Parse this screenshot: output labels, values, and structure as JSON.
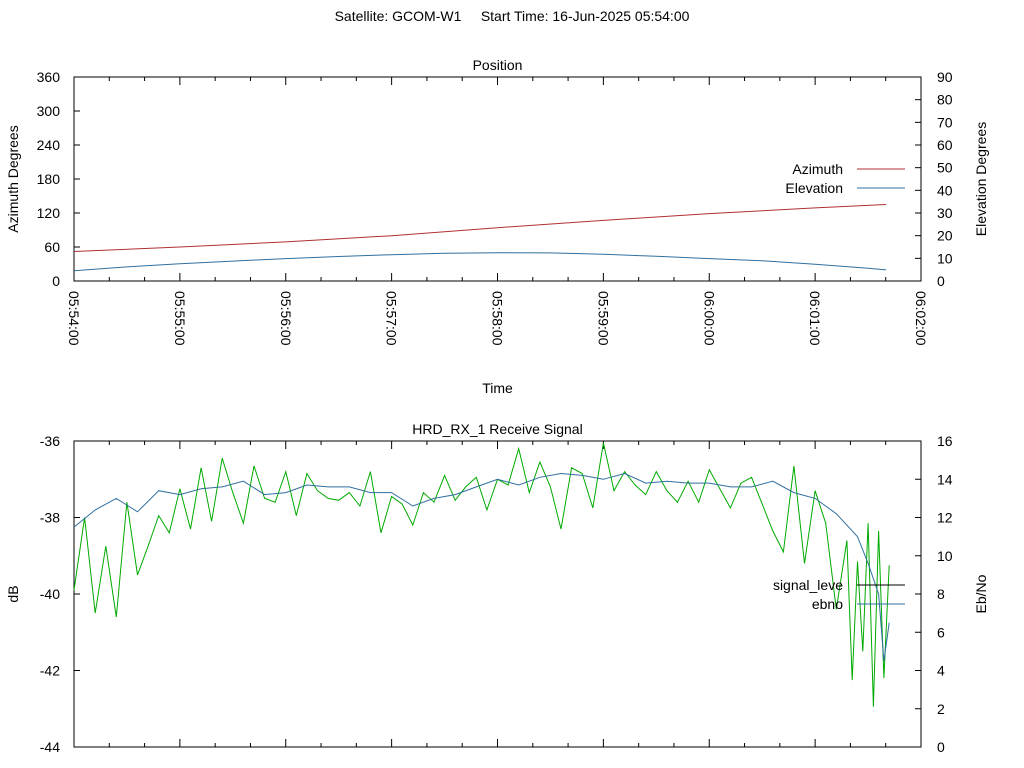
{
  "header": {
    "title": "Satellite: GCOM-W1     Start Time: 16-Jun-2025 05:54:00"
  },
  "chart_data": [
    {
      "type": "line",
      "title": "Position",
      "xlabel": "Time",
      "ylabel": "Azimuth Degrees",
      "y2label": "Elevation Degrees",
      "x_ticks": [
        "05:54:00",
        "05:55:00",
        "05:56:00",
        "05:57:00",
        "05:58:00",
        "05:59:00",
        "06:00:00",
        "06:01:00",
        "06:02:00"
      ],
      "xlim_minutes": [
        0,
        8
      ],
      "ylim": [
        0,
        360
      ],
      "y_ticks": [
        "0",
        "60",
        "120",
        "180",
        "240",
        "300",
        "360"
      ],
      "y2lim": [
        0,
        90
      ],
      "y2_ticks": [
        "0",
        "10",
        "20",
        "30",
        "40",
        "50",
        "60",
        "70",
        "80",
        "90"
      ],
      "legend_position": "right",
      "series": [
        {
          "name": "Azimuth",
          "axis": "y",
          "color": "#b03030",
          "x": [
            0,
            1,
            2,
            3,
            4,
            5,
            6,
            7,
            7.67
          ],
          "y": [
            52,
            60,
            69,
            80,
            94,
            107,
            119,
            129,
            135
          ]
        },
        {
          "name": "Elevation",
          "axis": "y2",
          "color": "#2f6fa0",
          "x": [
            0,
            0.5,
            1,
            1.5,
            2,
            2.5,
            3,
            3.5,
            4,
            4.5,
            5,
            5.5,
            6,
            6.5,
            7,
            7.5,
            7.67
          ],
          "y": [
            4.5,
            6.2,
            7.6,
            8.8,
            9.9,
            10.8,
            11.6,
            12.2,
            12.5,
            12.4,
            11.8,
            10.9,
            9.9,
            8.9,
            7.4,
            5.6,
            4.9
          ]
        }
      ]
    },
    {
      "type": "line",
      "title": "HRD_RX_1 Receive Signal",
      "ylabel": "dB",
      "y2label": "Eb/No",
      "ylim": [
        -44,
        -36
      ],
      "y_ticks": [
        "-44",
        "-42",
        "-40",
        "-38",
        "-36"
      ],
      "y2lim": [
        0,
        16
      ],
      "y2_ticks": [
        "0",
        "2",
        "4",
        "6",
        "8",
        "10",
        "12",
        "14",
        "16"
      ],
      "xlim_minutes": [
        0,
        8
      ],
      "legend_position": "right",
      "series": [
        {
          "name": "signal_leve",
          "axis": "y",
          "color": "#000000",
          "x": [],
          "y": []
        },
        {
          "name": "ebno",
          "axis": "y2",
          "color": "#2f6fa0",
          "x": [
            0,
            0.2,
            0.4,
            0.6,
            0.8,
            1,
            1.2,
            1.4,
            1.6,
            1.8,
            2,
            2.2,
            2.4,
            2.6,
            2.8,
            3,
            3.2,
            3.4,
            3.6,
            3.8,
            4,
            4.2,
            4.4,
            4.6,
            4.8,
            5,
            5.2,
            5.4,
            5.6,
            5.8,
            6,
            6.2,
            6.4,
            6.6,
            6.8,
            7,
            7.2,
            7.4,
            7.5,
            7.6,
            7.65,
            7.7
          ],
          "y": [
            11.5,
            12.4,
            13,
            12.3,
            13.4,
            13.2,
            13.5,
            13.6,
            13.9,
            13.2,
            13.3,
            13.7,
            13.6,
            13.6,
            13.3,
            13.3,
            12.6,
            13,
            13.2,
            13.6,
            14,
            13.7,
            14.1,
            14.3,
            14.2,
            14,
            14.3,
            13.8,
            13.9,
            13.8,
            13.8,
            13.6,
            13.6,
            13.9,
            13.3,
            13,
            12.2,
            11,
            9.6,
            8,
            4.5,
            6.5
          ]
        },
        {
          "name": "",
          "axis": "y2",
          "color": "#00aa00",
          "x": [
            0,
            0.1,
            0.2,
            0.3,
            0.4,
            0.5,
            0.6,
            0.7,
            0.8,
            0.9,
            1,
            1.1,
            1.2,
            1.3,
            1.4,
            1.5,
            1.6,
            1.7,
            1.8,
            1.9,
            2,
            2.1,
            2.2,
            2.3,
            2.4,
            2.5,
            2.6,
            2.7,
            2.8,
            2.9,
            3,
            3.1,
            3.2,
            3.3,
            3.4,
            3.5,
            3.6,
            3.7,
            3.8,
            3.9,
            4,
            4.1,
            4.2,
            4.3,
            4.4,
            4.5,
            4.6,
            4.7,
            4.8,
            4.9,
            5,
            5.1,
            5.2,
            5.3,
            5.4,
            5.5,
            5.6,
            5.7,
            5.8,
            5.9,
            6,
            6.1,
            6.2,
            6.3,
            6.4,
            6.5,
            6.6,
            6.7,
            6.8,
            6.9,
            7,
            7.1,
            7.2,
            7.3,
            7.35,
            7.4,
            7.45,
            7.5,
            7.55,
            7.6,
            7.65,
            7.7
          ],
          "y": [
            8.2,
            12,
            7,
            10.5,
            6.8,
            12.8,
            9,
            10.5,
            12.1,
            11.2,
            13.5,
            11.4,
            14.6,
            11.8,
            15.1,
            13.3,
            11.7,
            14.7,
            13,
            12.8,
            14.4,
            12.1,
            14.3,
            13.4,
            13,
            12.9,
            13.3,
            12.6,
            14.4,
            11.2,
            13.1,
            12.7,
            11.6,
            13.3,
            12.8,
            14.2,
            12.9,
            13.6,
            14.1,
            12.4,
            14,
            13.7,
            15.6,
            13.3,
            14.9,
            13.6,
            11.4,
            14.6,
            14.3,
            12.5,
            15.9,
            13.4,
            14.4,
            13.7,
            13.2,
            14.4,
            13.4,
            12.8,
            13.9,
            12.8,
            14.5,
            13.5,
            12.5,
            13.8,
            14.1,
            12.7,
            11.3,
            10.2,
            14.7,
            9.6,
            13.4,
            11.7,
            7.2,
            10.8,
            3.5,
            9.7,
            5,
            11.7,
            2.1,
            11.3,
            3.6,
            9.5
          ]
        }
      ]
    }
  ]
}
